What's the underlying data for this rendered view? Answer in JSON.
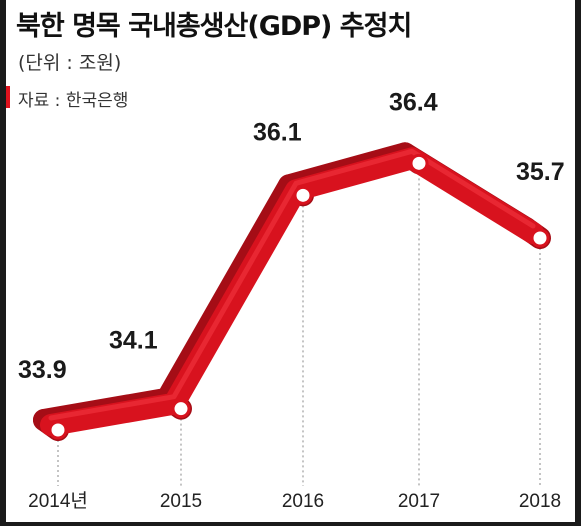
{
  "header": {
    "title": "북한 명목 국내총생산(GDP) 추정치",
    "unit": "(단위 : 조원)",
    "source": "자료 : 한국은행"
  },
  "colors": {
    "line": "#d8121e",
    "line_dark": "#a50d16",
    "marker_stroke": "#d8121e",
    "marker_fill": "#ffffff",
    "guide": "#888888"
  },
  "chart_data": {
    "type": "line",
    "categories": [
      "2014년",
      "2015",
      "2016",
      "2017",
      "2018"
    ],
    "series": [
      {
        "values": [
          33.9,
          34.1,
          36.1,
          36.4,
          35.7
        ]
      }
    ],
    "data_labels": [
      "33.9",
      "34.1",
      "36.1",
      "36.4",
      "35.7"
    ],
    "title": "북한 명목 국내총생산(GDP) 추정치",
    "ylabel": "",
    "xlabel": "",
    "ylim": [
      33.6,
      36.6
    ],
    "grid": false,
    "legend": "none"
  }
}
